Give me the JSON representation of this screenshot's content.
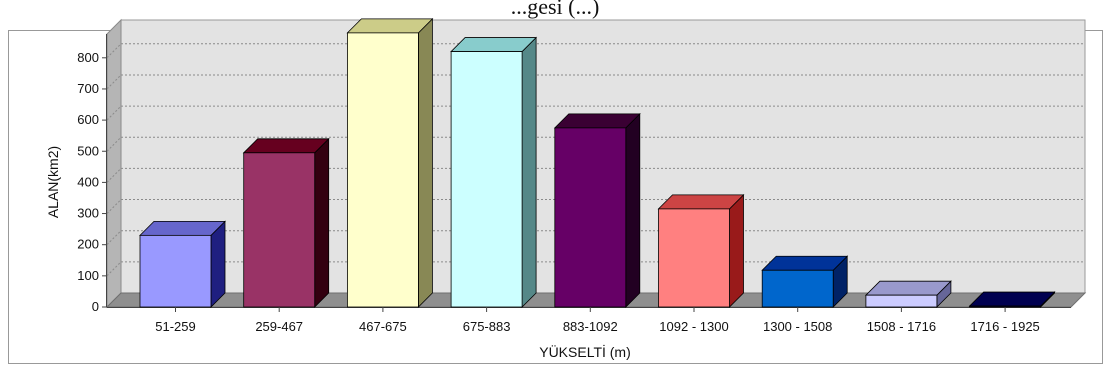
{
  "chart_data": {
    "type": "bar",
    "title": "",
    "title_partial_visible": "...gesi (...)",
    "xlabel": "YÜKSELTİ (m)",
    "ylabel": "ALAN(km2)",
    "ylim": [
      0,
      880
    ],
    "yticks": [
      0,
      100,
      200,
      300,
      400,
      500,
      600,
      700,
      800
    ],
    "categories": [
      "51-259",
      "259-467",
      "467-675",
      "675-883",
      "883-1092",
      "1092 - 1300",
      "1300 - 1508",
      "1508 - 1716",
      "1716 - 1925"
    ],
    "values": [
      230,
      495,
      880,
      820,
      575,
      315,
      118,
      38,
      3
    ],
    "colors": {
      "front": [
        "#9999ff",
        "#993366",
        "#ffffcc",
        "#ccffff",
        "#660066",
        "#ff8080",
        "#0066cc",
        "#ccccff",
        "#000080"
      ],
      "top": [
        "#6666cc",
        "#66001f",
        "#cccc88",
        "#88cccc",
        "#3a0033",
        "#cc4444",
        "#003399",
        "#9999cc",
        "#000050"
      ],
      "side": [
        "#1f1f80",
        "#330010",
        "#888855",
        "#558888",
        "#220022",
        "#991a1a",
        "#002266",
        "#666699",
        "#000033"
      ]
    },
    "grid": true,
    "legend": "none"
  }
}
